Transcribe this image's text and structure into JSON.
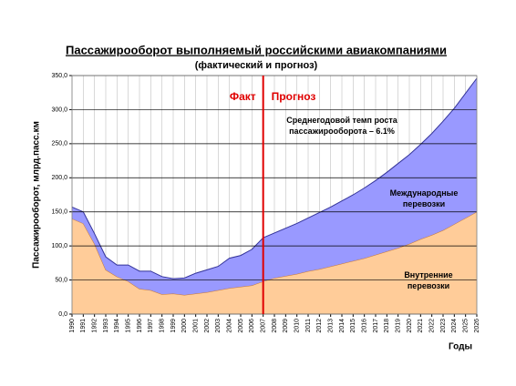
{
  "chart_data": {
    "type": "stacked_area",
    "title": "Пассажирооборот выполняемый российскими авиакомпаниями",
    "subtitle": "(фактический и прогноз)",
    "y_label": "Пассажирооборот, млрд.пасс.км",
    "x_label": "Годы",
    "categories": [
      "1990",
      "1991",
      "1992",
      "1993",
      "1994",
      "1995",
      "1996",
      "1997",
      "1998",
      "1999",
      "2000",
      "2001",
      "2002",
      "2003",
      "2004",
      "2005",
      "2006",
      "2007",
      "2008",
      "2009",
      "2010",
      "2011",
      "2012",
      "2013",
      "2014",
      "2015",
      "2016",
      "2017",
      "2018",
      "2019",
      "2020",
      "2021",
      "2022",
      "2023",
      "2024",
      "2025",
      "2026"
    ],
    "series": [
      {
        "name": "Внутренние\nперевозки",
        "color": "#ffcc99",
        "line_color": "#c87832",
        "values": [
          140,
          133,
          103,
          65,
          55,
          48,
          37,
          35,
          29,
          30,
          28,
          30,
          32,
          35,
          38,
          40,
          42,
          48,
          53,
          56,
          59,
          63,
          66,
          70,
          74,
          78,
          82,
          87,
          92,
          97,
          103,
          110,
          116,
          123,
          132,
          141,
          150
        ]
      },
      {
        "name": "Международные\nперевозки",
        "color": "#9999ff",
        "line_color": "#333399",
        "values": [
          17,
          17,
          15,
          19,
          17,
          24,
          26,
          28,
          26,
          22,
          25,
          30,
          33,
          35,
          44,
          46,
          53,
          64,
          66,
          70,
          74,
          78,
          83,
          87,
          92,
          97,
          103,
          109,
          116,
          124,
          131,
          139,
          149,
          160,
          170,
          183,
          196
        ]
      }
    ],
    "ylim": [
      0,
      350
    ],
    "yticks": [
      {
        "value": 0,
        "label": "0,0"
      },
      {
        "value": 50,
        "label": "50,0"
      },
      {
        "value": 100,
        "label": "100,0"
      },
      {
        "value": 150,
        "label": "150,0"
      },
      {
        "value": 200,
        "label": "200,0"
      },
      {
        "value": 250,
        "label": "250,0"
      },
      {
        "value": 300,
        "label": "300,0"
      },
      {
        "value": 350,
        "label": "350,0"
      }
    ],
    "grid": true,
    "forecast_from": "2007",
    "divider_color": "#e00000",
    "annotations": [
      "Факт",
      "Прогноз",
      "Среднегодовой темп роста\nпассажирооборота – 6.1%"
    ]
  }
}
